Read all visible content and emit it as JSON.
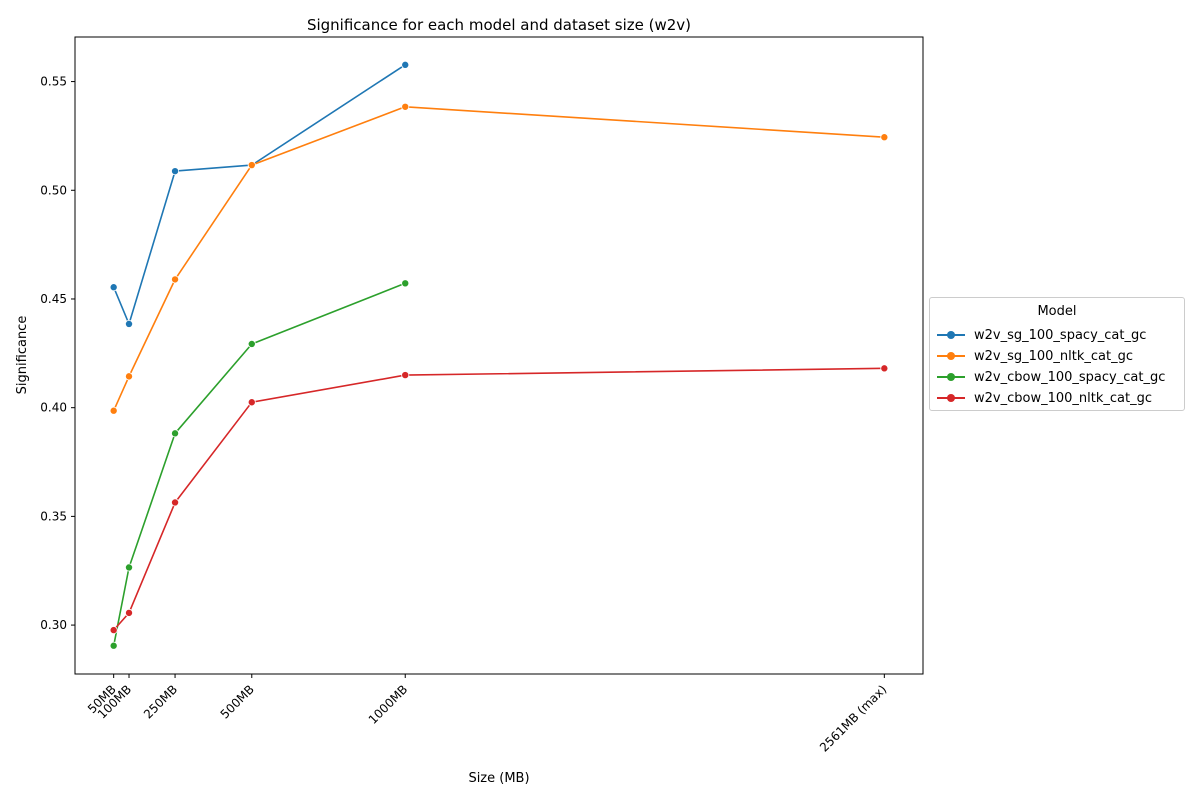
{
  "chart_data": {
    "type": "line",
    "title": "Significance for each model and dataset size (w2v)",
    "xlabel": "Size (MB)",
    "ylabel": "Significance",
    "x_ticks": [
      {
        "value": 50,
        "label": "50MB"
      },
      {
        "value": 100,
        "label": "100MB"
      },
      {
        "value": 250,
        "label": "250MB"
      },
      {
        "value": 500,
        "label": "500MB"
      },
      {
        "value": 1000,
        "label": "1000MB"
      },
      {
        "value": 2561,
        "label": "2561MB (max)"
      }
    ],
    "y_ticks": [
      0.3,
      0.35,
      0.4,
      0.45,
      0.5,
      0.55
    ],
    "xlim": [
      -76,
      2687
    ],
    "ylim": [
      0.2775,
      0.5705
    ],
    "grid": false,
    "legend": {
      "title": "Model",
      "placement": "outside-right"
    },
    "series": [
      {
        "name": "w2v_sg_100_spacy_cat_gc",
        "color": "#1f77b4",
        "points": [
          [
            50,
            0.4554
          ],
          [
            100,
            0.4385
          ],
          [
            250,
            0.5088
          ],
          [
            500,
            0.5116
          ],
          [
            1000,
            0.5577
          ]
        ]
      },
      {
        "name": "w2v_sg_100_nltk_cat_gc",
        "color": "#ff7f0e",
        "points": [
          [
            50,
            0.3986
          ],
          [
            100,
            0.4144
          ],
          [
            250,
            0.459
          ],
          [
            500,
            0.5116
          ],
          [
            1000,
            0.5384
          ],
          [
            2561,
            0.5244
          ]
        ]
      },
      {
        "name": "w2v_cbow_100_spacy_cat_gc",
        "color": "#2ca02c",
        "points": [
          [
            50,
            0.2905
          ],
          [
            100,
            0.3265
          ],
          [
            250,
            0.3882
          ],
          [
            500,
            0.4293
          ],
          [
            1000,
            0.4572
          ]
        ]
      },
      {
        "name": "w2v_cbow_100_nltk_cat_gc",
        "color": "#d62728",
        "points": [
          [
            50,
            0.2977
          ],
          [
            100,
            0.3056
          ],
          [
            250,
            0.3564
          ],
          [
            500,
            0.4025
          ],
          [
            1000,
            0.415
          ],
          [
            2561,
            0.4181
          ]
        ]
      }
    ]
  }
}
